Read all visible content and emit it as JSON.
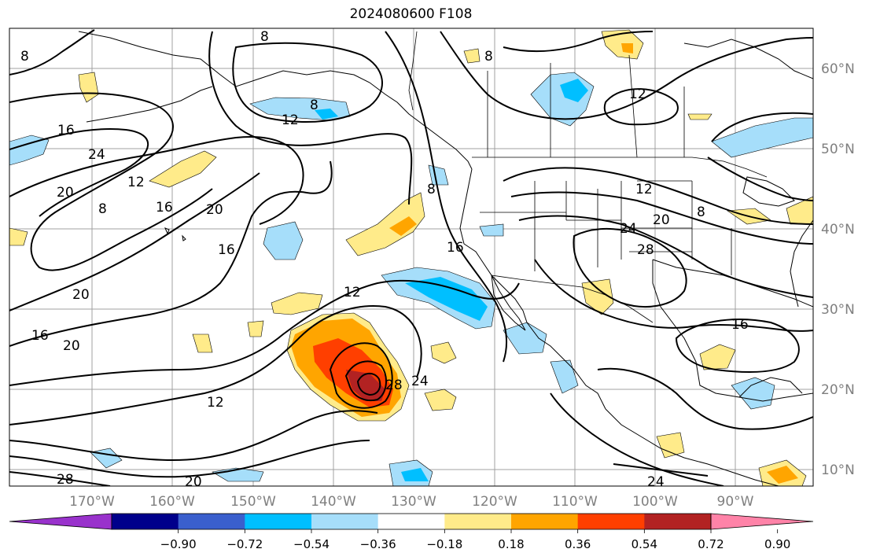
{
  "title": "2024080600 F108",
  "map": {
    "lon_labels": [
      "170°W",
      "160°W",
      "150°W",
      "140°W",
      "130°W",
      "120°W",
      "110°W",
      "100°W",
      "90°W"
    ],
    "lat_labels": [
      "60°N",
      "50°N",
      "40°N",
      "30°N",
      "20°N",
      "10°N"
    ],
    "contour_labels": [
      "8",
      "8",
      "8",
      "8",
      "12",
      "12",
      "12",
      "12",
      "12",
      "16",
      "16",
      "16",
      "16",
      "16",
      "20",
      "20",
      "20",
      "20",
      "20",
      "24",
      "24",
      "24",
      "28",
      "28",
      "28",
      "8",
      "8",
      "8",
      "12",
      "16",
      "20",
      "24"
    ]
  },
  "colorbar": {
    "tick_labels": [
      "−0.90",
      "−0.72",
      "−0.54",
      "−0.36",
      "−0.18",
      "0.18",
      "0.36",
      "0.54",
      "0.72",
      "0.90"
    ],
    "colors": [
      "#9932cc",
      "#00008b",
      "#3a5fcd",
      "#00bfff",
      "#a6defa",
      "#ffffff",
      "#ffeb8a",
      "#ffa500",
      "#ff3f00",
      "#b22222",
      "#ff83a8"
    ]
  }
}
